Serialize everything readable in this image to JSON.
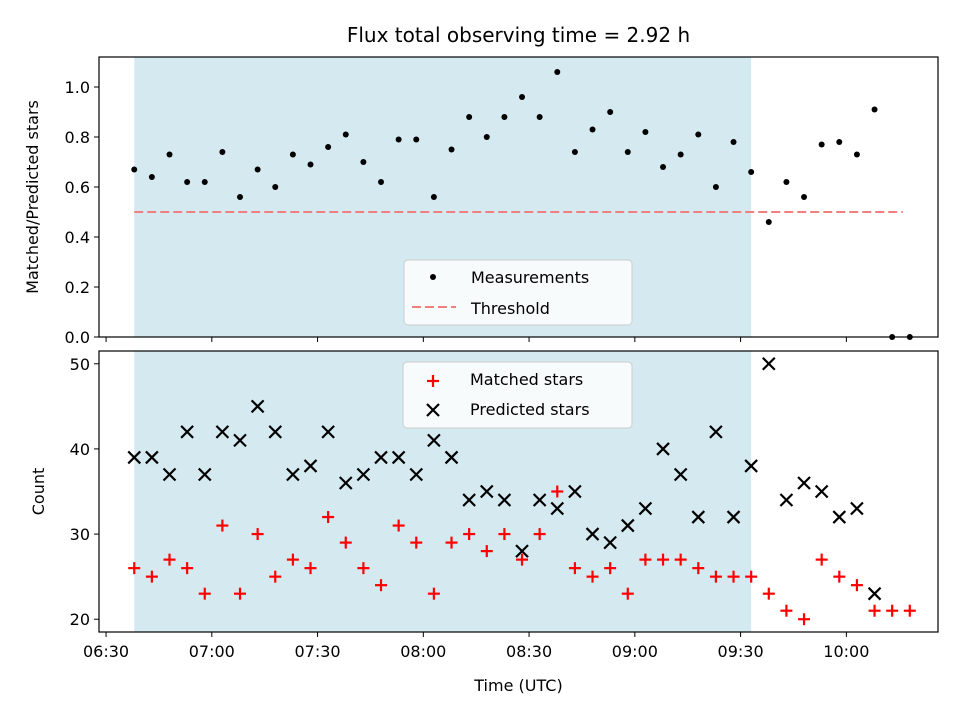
{
  "colors": {
    "observing_band": "#d4eaf0",
    "measurement": "#000000",
    "threshold": "#f08080",
    "matched": "#ff0000",
    "predicted": "#000000"
  },
  "chart_data": [
    {
      "type": "scatter",
      "title": "Flux total observing time = 2.92 h",
      "xlabel": "",
      "ylabel": "Matched/Predicted stars",
      "xlim": [
        "06:28",
        "10:26"
      ],
      "ylim": [
        0,
        1.12
      ],
      "yticks": [
        "0.0",
        "0.2",
        "0.4",
        "0.6",
        "0.8",
        "1.0"
      ],
      "observing_window": [
        "06:38",
        "09:33"
      ],
      "legend_position": "lower-center",
      "series": [
        {
          "name": "Measurements",
          "marker": "dot",
          "x": [
            "06:38",
            "06:43",
            "06:48",
            "06:53",
            "06:58",
            "07:03",
            "07:08",
            "07:13",
            "07:18",
            "07:23",
            "07:28",
            "07:33",
            "07:38",
            "07:43",
            "07:48",
            "07:53",
            "07:58",
            "08:03",
            "08:08",
            "08:13",
            "08:18",
            "08:23",
            "08:28",
            "08:33",
            "08:38",
            "08:43",
            "08:48",
            "08:53",
            "08:58",
            "09:03",
            "09:08",
            "09:13",
            "09:18",
            "09:23",
            "09:28",
            "09:33",
            "09:38",
            "09:43",
            "09:48",
            "09:53",
            "09:58",
            "10:03",
            "10:08",
            "10:13",
            "10:18"
          ],
          "y": [
            0.67,
            0.64,
            0.73,
            0.62,
            0.62,
            0.74,
            0.56,
            0.67,
            0.6,
            0.73,
            0.69,
            0.76,
            0.81,
            0.7,
            0.62,
            0.79,
            0.79,
            0.56,
            0.75,
            0.88,
            0.8,
            0.88,
            0.96,
            0.88,
            1.06,
            0.74,
            0.83,
            0.9,
            0.74,
            0.82,
            0.68,
            0.73,
            0.81,
            0.6,
            0.78,
            0.66,
            0.46,
            0.62,
            0.56,
            0.77,
            0.78,
            0.73,
            0.91,
            0.0,
            0.0
          ]
        },
        {
          "name": "Threshold",
          "marker": "dashed-line",
          "x": [
            "06:38",
            "10:16"
          ],
          "y": [
            0.5,
            0.5
          ]
        }
      ]
    },
    {
      "type": "scatter",
      "title": "",
      "xlabel": "Time (UTC)",
      "ylabel": "Count",
      "xlim": [
        "06:28",
        "10:26"
      ],
      "ylim": [
        18.5,
        51.5
      ],
      "yticks": [
        "20",
        "30",
        "40",
        "50"
      ],
      "xticks": [
        "06:30",
        "07:00",
        "07:30",
        "08:00",
        "08:30",
        "09:00",
        "09:30",
        "10:00"
      ],
      "observing_window": [
        "06:38",
        "09:33"
      ],
      "legend_position": "upper-center",
      "series": [
        {
          "name": "Matched stars",
          "marker": "plus",
          "x": [
            "06:38",
            "06:43",
            "06:48",
            "06:53",
            "06:58",
            "07:03",
            "07:08",
            "07:13",
            "07:18",
            "07:23",
            "07:28",
            "07:33",
            "07:38",
            "07:43",
            "07:48",
            "07:53",
            "07:58",
            "08:03",
            "08:08",
            "08:13",
            "08:18",
            "08:23",
            "08:28",
            "08:33",
            "08:38",
            "08:43",
            "08:48",
            "08:53",
            "08:58",
            "09:03",
            "09:08",
            "09:13",
            "09:18",
            "09:23",
            "09:28",
            "09:33",
            "09:38",
            "09:43",
            "09:48",
            "09:53",
            "09:58",
            "10:03",
            "10:08",
            "10:13",
            "10:18"
          ],
          "y": [
            26,
            25,
            27,
            26,
            23,
            31,
            23,
            30,
            25,
            27,
            26,
            32,
            29,
            26,
            24,
            31,
            29,
            23,
            29,
            30,
            28,
            30,
            27,
            30,
            35,
            26,
            25,
            26,
            23,
            27,
            27,
            27,
            26,
            25,
            25,
            25,
            23,
            21,
            20,
            27,
            25,
            24,
            21,
            21,
            21
          ]
        },
        {
          "name": "Predicted stars",
          "marker": "x",
          "x": [
            "06:38",
            "06:43",
            "06:48",
            "06:53",
            "06:58",
            "07:03",
            "07:08",
            "07:13",
            "07:18",
            "07:23",
            "07:28",
            "07:33",
            "07:38",
            "07:43",
            "07:48",
            "07:53",
            "07:58",
            "08:03",
            "08:08",
            "08:13",
            "08:18",
            "08:23",
            "08:28",
            "08:33",
            "08:38",
            "08:43",
            "08:48",
            "08:53",
            "08:58",
            "09:03",
            "09:08",
            "09:13",
            "09:18",
            "09:23",
            "09:28",
            "09:33",
            "09:38",
            "09:43",
            "09:48",
            "09:53",
            "09:58",
            "10:03",
            "10:08"
          ],
          "y": [
            39,
            39,
            37,
            42,
            37,
            42,
            41,
            45,
            42,
            37,
            38,
            42,
            36,
            37,
            39,
            39,
            37,
            41,
            39,
            34,
            35,
            34,
            28,
            34,
            33,
            35,
            30,
            29,
            31,
            33,
            40,
            37,
            32,
            42,
            32,
            38,
            50,
            34,
            36,
            35,
            32,
            33,
            23
          ]
        }
      ]
    }
  ]
}
